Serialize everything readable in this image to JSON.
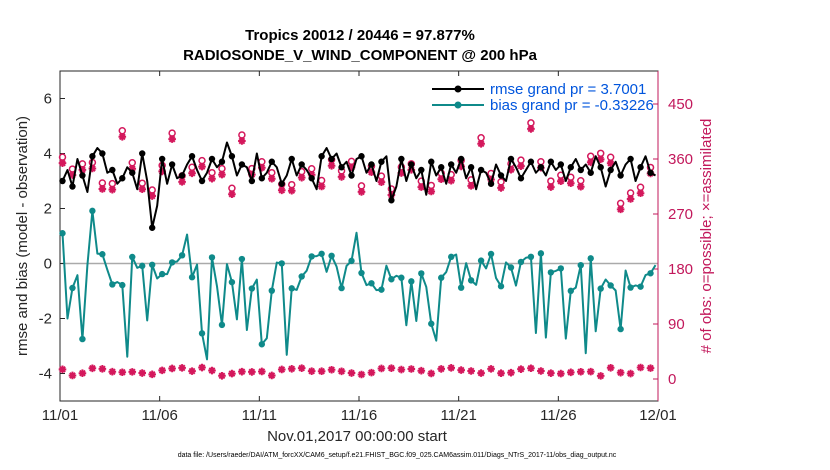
{
  "chart_data": {
    "type": "line",
    "title_line1": "Tropics 20012 / 20446 = 97.877%",
    "title_line2": "RADIOSONDE_V_WIND_COMPONENT @ 200 hPa",
    "xlabel": "Nov.01,2017 00:00:00 start",
    "ylabel_left": "rmse and bias (model - observation)",
    "ylabel_right": "# of obs: o=possible; ×=assimilated",
    "x_range": [
      0,
      30
    ],
    "y_left_range": [
      -5,
      7
    ],
    "y_right_range": [
      -36,
      504
    ],
    "x_ticks": [
      {
        "value": 0,
        "label": "11/01"
      },
      {
        "value": 5,
        "label": "11/06"
      },
      {
        "value": 10,
        "label": "11/11"
      },
      {
        "value": 15,
        "label": "11/16"
      },
      {
        "value": 20,
        "label": "11/21"
      },
      {
        "value": 25,
        "label": "11/26"
      },
      {
        "value": 30,
        "label": "12/01"
      }
    ],
    "y_left_ticks": [
      {
        "value": -4,
        "label": "-4"
      },
      {
        "value": -2,
        "label": "-2"
      },
      {
        "value": 0,
        "label": "0"
      },
      {
        "value": 2,
        "label": "2"
      },
      {
        "value": 4,
        "label": "4"
      },
      {
        "value": 6,
        "label": "6"
      }
    ],
    "y_right_ticks": [
      {
        "value": 0,
        "label": "0"
      },
      {
        "value": 90,
        "label": "90"
      },
      {
        "value": 180,
        "label": "180"
      },
      {
        "value": 270,
        "label": "270"
      },
      {
        "value": 360,
        "label": "360"
      },
      {
        "value": 450,
        "label": "450"
      }
    ],
    "legend": {
      "rmse_label": "rmse grand pr = 3.7001",
      "bias_label": "bias grand pr = -0.33226",
      "placement": "top-right"
    },
    "colors": {
      "rmse": "#000000",
      "bias": "#0f8a8a",
      "obs": "#d4185c",
      "zero_line": "#aaaaaa",
      "right_axis": "#c2185b"
    },
    "x_step_days": 0.25,
    "series": [
      {
        "name": "rmse",
        "axis": "left",
        "values": [
          3.0,
          3.4,
          2.8,
          3.8,
          3.2,
          2.6,
          3.9,
          4.2,
          4.0,
          3.3,
          3.4,
          2.9,
          3.1,
          3.5,
          3.3,
          2.7,
          4.0,
          3.0,
          1.3,
          2.1,
          3.8,
          2.9,
          3.6,
          3.1,
          3.2,
          3.6,
          3.9,
          3.4,
          3.0,
          3.3,
          3.8,
          3.5,
          3.7,
          4.4,
          3.9,
          3.2,
          3.6,
          3.5,
          3.0,
          4.0,
          3.1,
          3.3,
          3.7,
          3.5,
          2.9,
          3.2,
          3.8,
          3.2,
          3.6,
          3.4,
          3.1,
          2.7,
          3.9,
          4.2,
          3.8,
          4.0,
          3.5,
          3.7,
          3.2,
          3.8,
          3.9,
          3.3,
          3.6,
          3.0,
          3.7,
          3.9,
          2.3,
          2.8,
          3.8,
          3.0,
          3.6,
          3.1,
          3.4,
          2.5,
          3.7,
          3.2,
          3.5,
          2.9,
          3.6,
          3.3,
          3.8,
          3.1,
          3.5,
          2.7,
          3.4,
          3.3,
          2.9,
          3.6,
          3.2,
          3.0,
          3.8,
          3.5,
          3.1,
          3.4,
          3.7,
          3.3,
          3.5,
          3.2,
          3.7,
          3.4,
          3.6,
          3.0,
          3.5,
          3.8,
          3.4,
          3.6,
          3.3,
          3.9,
          3.5,
          2.8,
          3.4,
          3.7,
          3.2,
          3.6,
          3.8,
          3.0,
          3.5,
          3.9,
          3.3,
          3.2
        ],
        "markers": [
          1,
          0,
          1,
          0,
          1,
          0,
          1,
          0,
          1,
          0,
          1,
          0,
          1,
          0,
          1,
          0,
          1,
          0,
          1,
          0,
          1,
          0,
          1,
          0,
          1,
          0,
          1,
          0,
          1,
          0,
          1,
          0,
          1,
          0,
          1,
          0,
          1,
          0,
          1,
          0,
          1,
          0,
          1,
          0,
          1,
          0,
          1,
          0,
          1,
          0,
          1,
          0,
          1,
          0,
          1,
          0,
          1,
          0,
          1,
          0,
          1,
          0,
          1,
          0,
          1,
          0,
          1,
          0,
          1,
          0,
          1,
          0,
          1,
          0,
          1,
          0,
          1,
          0,
          1,
          0,
          1,
          0,
          1,
          0,
          1,
          0,
          1,
          0,
          1,
          0,
          1,
          0,
          1,
          0,
          1,
          0,
          1,
          0,
          1,
          0,
          1,
          0,
          1,
          0,
          1,
          0,
          1,
          0,
          1,
          0,
          1,
          0,
          1,
          0,
          1,
          0,
          1,
          0,
          1,
          0
        ]
      }
    ]
  },
  "footer": {
    "data_file": "data file: /Users/raeder/DAI/ATM_forcXX/CAM6_setup/f.e21.FHIST_BGC.f09_025.CAM6assim.011/Diags_NTrS_2017-11/obs_diag_output.nc"
  }
}
